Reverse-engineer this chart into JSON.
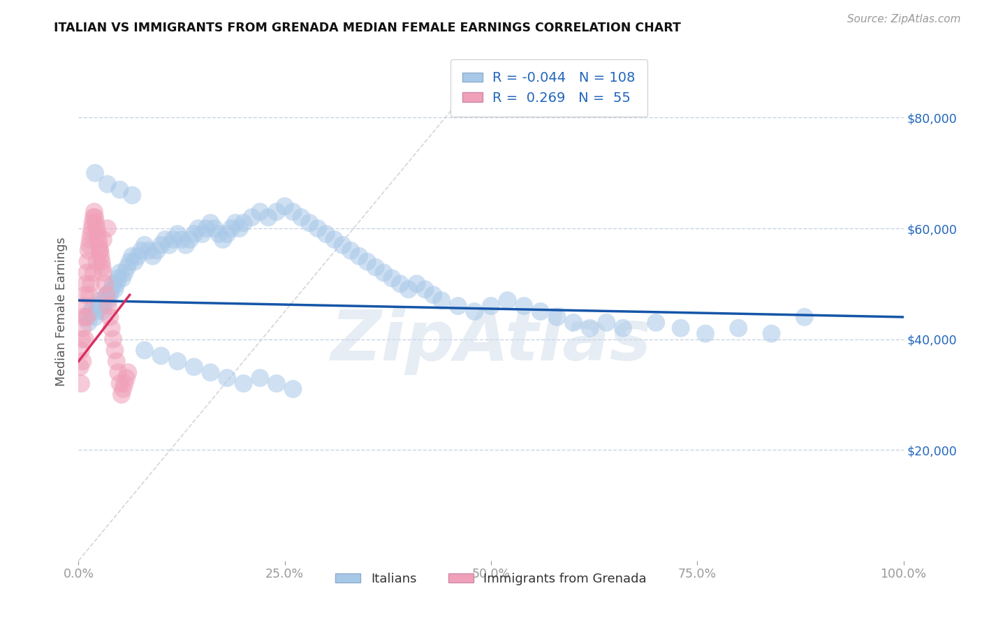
{
  "title": "ITALIAN VS IMMIGRANTS FROM GRENADA MEDIAN FEMALE EARNINGS CORRELATION CHART",
  "source": "Source: ZipAtlas.com",
  "ylabel": "Median Female Earnings",
  "xlim": [
    0.0,
    1.0
  ],
  "ylim": [
    0,
    90000
  ],
  "ytick_values": [
    20000,
    40000,
    60000,
    80000
  ],
  "xtick_values": [
    0.0,
    0.25,
    0.5,
    0.75,
    1.0
  ],
  "xtick_labels": [
    "0.0%",
    "25.0%",
    "50.0%",
    "75.0%",
    "100.0%"
  ],
  "legend_R1": "-0.044",
  "legend_N1": "108",
  "legend_R2": "0.269",
  "legend_N2": "55",
  "blue_color": "#a8c8e8",
  "pink_color": "#f0a0b8",
  "blue_line_color": "#1555a8",
  "pink_line_color": "#d83060",
  "diag_line_color": "#d0d0d8",
  "background": "#ffffff",
  "grid_color": "#c8d4e4",
  "watermark": "ZipAtlas",
  "watermark_color": "#d0dcea",
  "italians_x": [
    0.01,
    0.012,
    0.015,
    0.018,
    0.02,
    0.022,
    0.024,
    0.026,
    0.028,
    0.03,
    0.032,
    0.034,
    0.036,
    0.038,
    0.04,
    0.042,
    0.044,
    0.046,
    0.048,
    0.05,
    0.053,
    0.056,
    0.059,
    0.062,
    0.065,
    0.068,
    0.072,
    0.076,
    0.08,
    0.085,
    0.09,
    0.095,
    0.1,
    0.105,
    0.11,
    0.115,
    0.12,
    0.125,
    0.13,
    0.135,
    0.14,
    0.145,
    0.15,
    0.155,
    0.16,
    0.165,
    0.17,
    0.175,
    0.18,
    0.185,
    0.19,
    0.195,
    0.2,
    0.21,
    0.22,
    0.23,
    0.24,
    0.25,
    0.26,
    0.27,
    0.28,
    0.29,
    0.3,
    0.31,
    0.32,
    0.33,
    0.34,
    0.35,
    0.36,
    0.37,
    0.38,
    0.39,
    0.4,
    0.41,
    0.42,
    0.43,
    0.44,
    0.46,
    0.48,
    0.5,
    0.52,
    0.54,
    0.56,
    0.58,
    0.6,
    0.62,
    0.64,
    0.66,
    0.7,
    0.73,
    0.76,
    0.8,
    0.84,
    0.88,
    0.02,
    0.035,
    0.05,
    0.065,
    0.08,
    0.1,
    0.12,
    0.14,
    0.16,
    0.18,
    0.2,
    0.22,
    0.24,
    0.26
  ],
  "italians_y": [
    44000,
    43000,
    45000,
    46000,
    44000,
    45000,
    46000,
    47000,
    46000,
    45000,
    47000,
    48000,
    47000,
    48000,
    49000,
    50000,
    49000,
    50000,
    51000,
    52000,
    51000,
    52000,
    53000,
    54000,
    55000,
    54000,
    55000,
    56000,
    57000,
    56000,
    55000,
    56000,
    57000,
    58000,
    57000,
    58000,
    59000,
    58000,
    57000,
    58000,
    59000,
    60000,
    59000,
    60000,
    61000,
    60000,
    59000,
    58000,
    59000,
    60000,
    61000,
    60000,
    61000,
    62000,
    63000,
    62000,
    63000,
    64000,
    63000,
    62000,
    61000,
    60000,
    59000,
    58000,
    57000,
    56000,
    55000,
    54000,
    53000,
    52000,
    51000,
    50000,
    49000,
    50000,
    49000,
    48000,
    47000,
    46000,
    45000,
    46000,
    47000,
    46000,
    45000,
    44000,
    43000,
    42000,
    43000,
    42000,
    43000,
    42000,
    41000,
    42000,
    41000,
    44000,
    70000,
    68000,
    67000,
    66000,
    38000,
    37000,
    36000,
    35000,
    34000,
    33000,
    32000,
    33000,
    32000,
    31000
  ],
  "grenada_x": [
    0.002,
    0.003,
    0.004,
    0.005,
    0.006,
    0.007,
    0.008,
    0.009,
    0.01,
    0.011,
    0.012,
    0.013,
    0.014,
    0.015,
    0.016,
    0.017,
    0.018,
    0.019,
    0.02,
    0.021,
    0.022,
    0.023,
    0.024,
    0.025,
    0.026,
    0.027,
    0.028,
    0.029,
    0.03,
    0.032,
    0.034,
    0.036,
    0.038,
    0.04,
    0.042,
    0.044,
    0.046,
    0.048,
    0.05,
    0.052,
    0.054,
    0.056,
    0.058,
    0.06,
    0.003,
    0.005,
    0.008,
    0.01,
    0.013,
    0.015,
    0.018,
    0.022,
    0.026,
    0.03,
    0.035
  ],
  "grenada_y": [
    35000,
    38000,
    40000,
    42000,
    44000,
    46000,
    48000,
    50000,
    52000,
    54000,
    56000,
    57000,
    58000,
    59000,
    60000,
    61000,
    62000,
    63000,
    62000,
    61000,
    60000,
    59000,
    58000,
    57000,
    56000,
    55000,
    54000,
    53000,
    52000,
    50000,
    48000,
    46000,
    44000,
    42000,
    40000,
    38000,
    36000,
    34000,
    32000,
    30000,
    31000,
    32000,
    33000,
    34000,
    32000,
    36000,
    40000,
    44000,
    48000,
    50000,
    52000,
    54000,
    56000,
    58000,
    60000
  ],
  "blue_trend_x": [
    0.0,
    1.0
  ],
  "blue_trend_y": [
    47000,
    44000
  ],
  "pink_trend_x": [
    0.0,
    0.062
  ],
  "pink_trend_y": [
    36000,
    48000
  ]
}
